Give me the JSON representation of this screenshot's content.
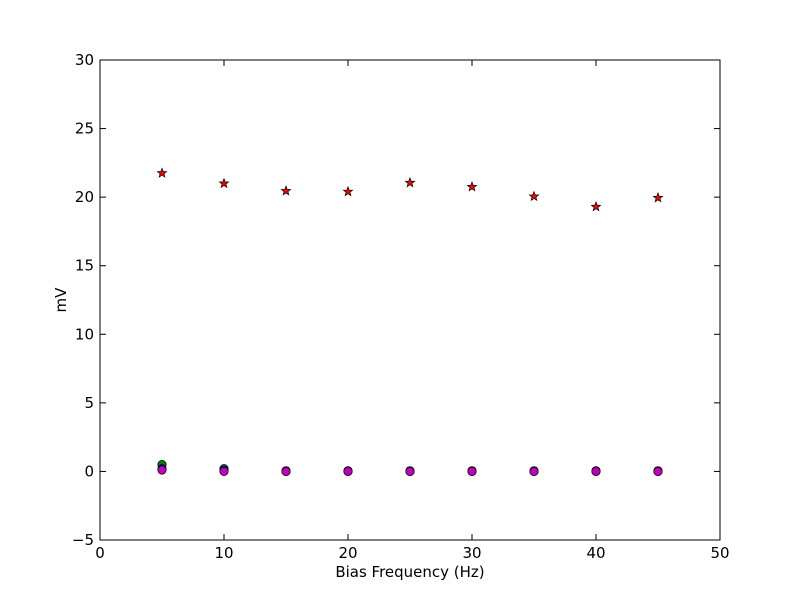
{
  "chart_data": {
    "type": "scatter",
    "title": "",
    "xlabel": "Bias Frequency (Hz)",
    "ylabel": "mV",
    "xlim": [
      0,
      50
    ],
    "ylim": [
      -5,
      30
    ],
    "x_ticks": [
      0,
      10,
      20,
      30,
      40,
      50
    ],
    "y_ticks": [
      -5,
      0,
      5,
      10,
      15,
      20,
      25,
      30
    ],
    "grid": false,
    "legend": "none",
    "series": [
      {
        "marker": "star",
        "color": "#ff0000",
        "x": [
          5,
          10,
          15,
          20,
          25,
          30,
          35,
          40,
          45
        ],
        "y": [
          21.75,
          21.0,
          20.45,
          20.4,
          21.05,
          20.75,
          20.05,
          19.3,
          19.95
        ]
      },
      {
        "marker": "circle",
        "color": "#008000",
        "x": [
          5,
          10,
          15,
          20,
          25,
          30,
          35,
          40,
          45
        ],
        "y": [
          0.5,
          0.2,
          0.05,
          0.05,
          0.05,
          0.05,
          0.05,
          0.05,
          0.05
        ]
      },
      {
        "marker": "circle",
        "color": "#0000ff",
        "x": [
          5,
          10,
          15,
          20,
          25,
          30,
          35,
          40,
          45
        ],
        "y": [
          0.2,
          0.1,
          0.0,
          0.0,
          0.0,
          0.0,
          0.0,
          0.0,
          0.0
        ]
      },
      {
        "marker": "circle",
        "color": "#bf00bf",
        "x": [
          5,
          10,
          15,
          20,
          25,
          30,
          35,
          40,
          45
        ],
        "y": [
          0.1,
          0.0,
          0.0,
          0.0,
          0.0,
          0.0,
          0.0,
          0.0,
          0.0
        ]
      }
    ]
  }
}
